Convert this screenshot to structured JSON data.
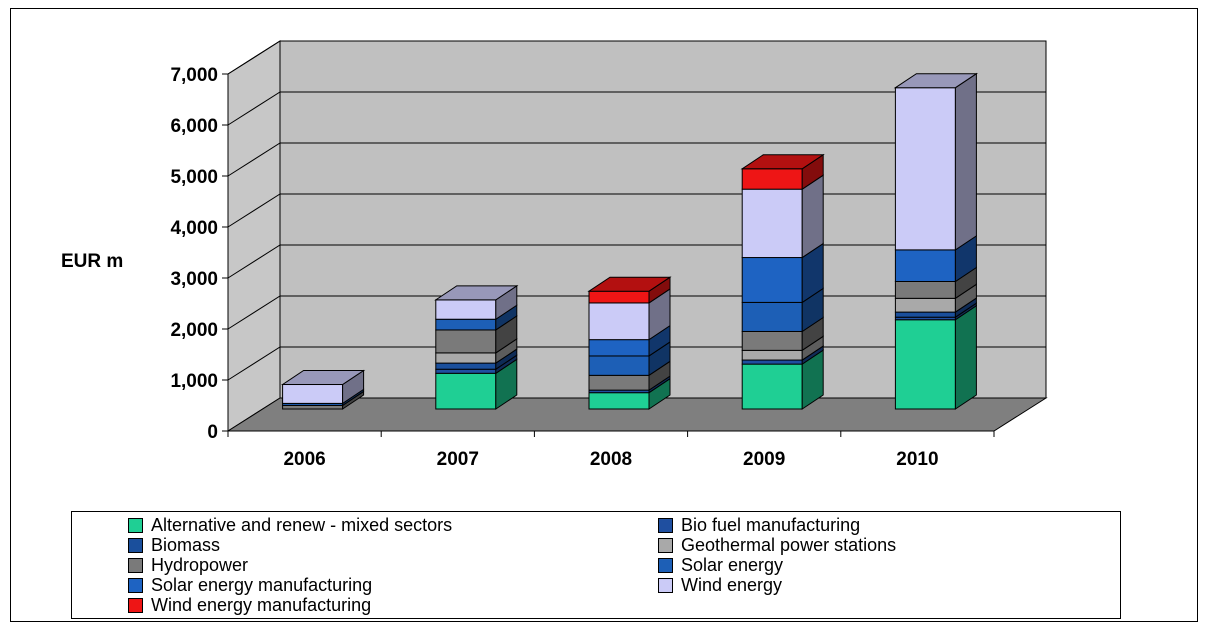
{
  "chart_data": {
    "type": "bar",
    "stacked": true,
    "three_d": true,
    "title": "",
    "xlabel": "",
    "ylabel": "EUR m",
    "ylim": [
      0,
      7000
    ],
    "yticks": [
      0,
      1000,
      2000,
      3000,
      4000,
      5000,
      6000,
      7000
    ],
    "ytick_labels": [
      "0",
      "1,000",
      "2,000",
      "3,000",
      "4,000",
      "5,000",
      "6,000",
      "7,000"
    ],
    "grid": true,
    "legend_position": "bottom",
    "categories": [
      "2006",
      "2007",
      "2008",
      "2009",
      "2010"
    ],
    "series": [
      {
        "name": "Alternative and  renew - mixed sectors",
        "color": "#1fcf94",
        "values": [
          0,
          700,
          320,
          880,
          1750
        ]
      },
      {
        "name": "Bio fuel manufacturing",
        "color": "#1f4fa0",
        "values": [
          0,
          80,
          50,
          80,
          50
        ]
      },
      {
        "name": "Biomass",
        "color": "#1a4f9c",
        "values": [
          0,
          120,
          0,
          0,
          100
        ]
      },
      {
        "name": "Geothermal power stations",
        "color": "#a9a9a9",
        "values": [
          0,
          200,
          0,
          190,
          270
        ]
      },
      {
        "name": "Hydropower",
        "color": "#7a7a7a",
        "values": [
          70,
          450,
          290,
          370,
          330
        ]
      },
      {
        "name": "Solar energy",
        "color": "#1d5fb6",
        "values": [
          40,
          210,
          380,
          570,
          0
        ]
      },
      {
        "name": "Solar energy manufacturing",
        "color": "#1e63c2",
        "values": [
          0,
          0,
          320,
          880,
          620
        ]
      },
      {
        "name": "Wind energy",
        "color": "#cbcbf7",
        "values": [
          370,
          380,
          720,
          1340,
          3180
        ]
      },
      {
        "name": "Wind energy manufacturing",
        "color": "#ee1515",
        "values": [
          0,
          0,
          230,
          400,
          0
        ]
      }
    ]
  }
}
